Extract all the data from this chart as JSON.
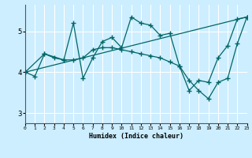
{
  "xlabel": "Humidex (Indice chaleur)",
  "bg_color": "#cceeff",
  "line_color": "#006666",
  "grid_color": "#ffffff",
  "xmin": 0,
  "xmax": 23,
  "ymin": 2.75,
  "ymax": 5.65,
  "yticks": [
    3,
    4,
    5
  ],
  "xticks": [
    0,
    1,
    2,
    3,
    4,
    5,
    6,
    7,
    8,
    9,
    10,
    11,
    12,
    13,
    14,
    15,
    16,
    17,
    18,
    19,
    20,
    21,
    22,
    23
  ],
  "lines": [
    {
      "x": [
        0,
        1,
        2,
        3,
        4,
        5,
        6,
        7,
        8,
        9,
        10,
        11,
        12,
        13,
        14,
        15,
        16,
        17,
        18,
        19,
        20,
        21,
        22,
        23
      ],
      "y": [
        4.0,
        3.9,
        4.45,
        4.35,
        4.3,
        5.2,
        3.85,
        4.35,
        4.75,
        4.85,
        4.6,
        5.35,
        5.2,
        5.15,
        4.9,
        4.95,
        4.15,
        3.55,
        3.8,
        3.75,
        4.35,
        4.65,
        5.3,
        5.35
      ]
    },
    {
      "x": [
        0,
        23
      ],
      "y": [
        4.0,
        5.35
      ]
    },
    {
      "x": [
        0,
        2,
        4,
        5,
        6,
        7,
        8,
        9,
        10,
        11,
        12,
        13,
        14,
        15,
        16,
        17,
        18,
        19,
        20,
        21,
        22,
        23
      ],
      "y": [
        4.0,
        4.45,
        4.3,
        4.3,
        4.35,
        4.55,
        4.6,
        4.6,
        4.55,
        4.5,
        4.45,
        4.4,
        4.35,
        4.25,
        4.15,
        3.8,
        3.55,
        3.35,
        3.75,
        3.85,
        4.7,
        5.35
      ]
    }
  ]
}
